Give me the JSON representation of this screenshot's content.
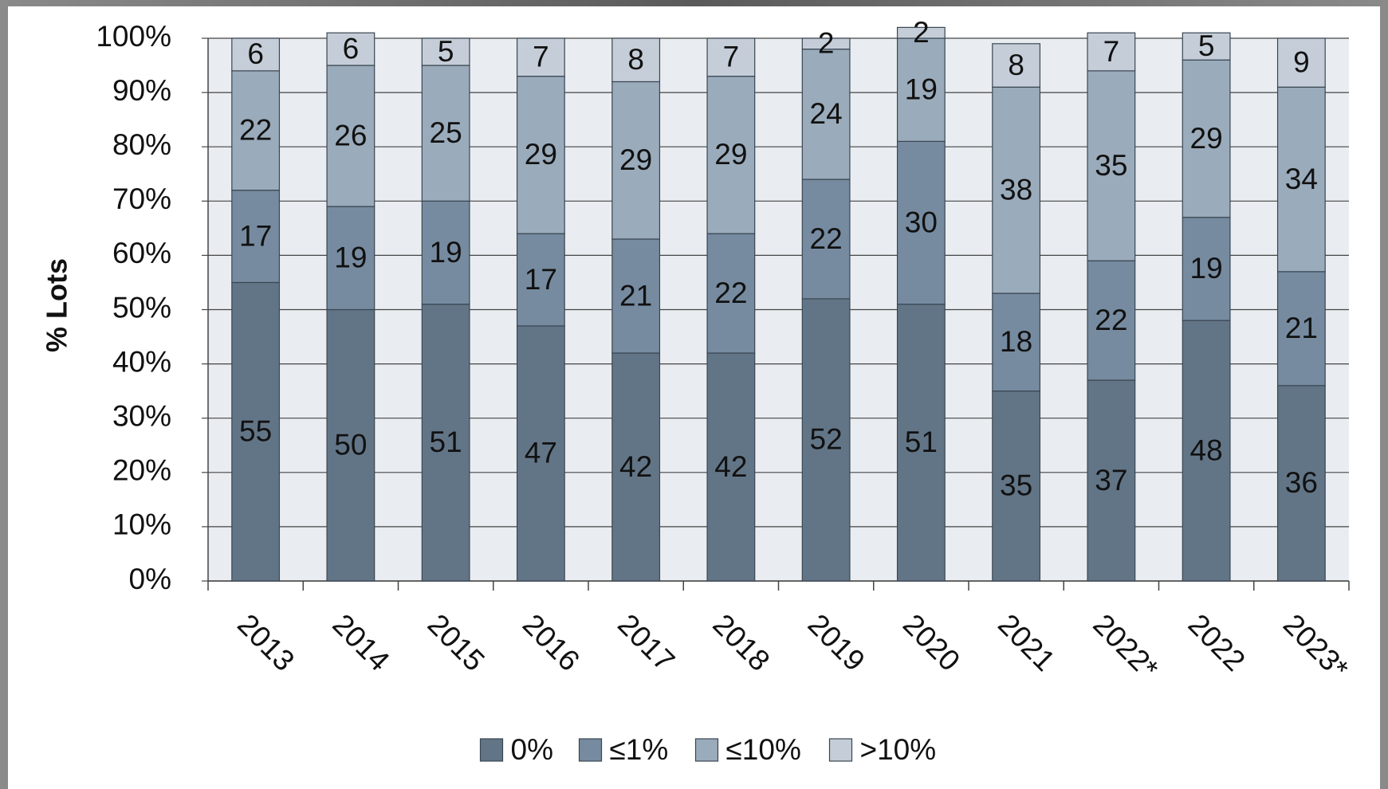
{
  "chart_data": {
    "type": "stacked_bar",
    "y_label": "% Lots",
    "categories": [
      "2013",
      "2014",
      "2015",
      "2016",
      "2017",
      "2018",
      "2019",
      "2020",
      "2021",
      "2022*",
      "2022",
      "2023*"
    ],
    "series": [
      {
        "name": "0%",
        "color": "#627587",
        "values": [
          55,
          50,
          51,
          47,
          42,
          42,
          52,
          51,
          35,
          37,
          48,
          36
        ]
      },
      {
        "name": "≤1%",
        "color": "#768ba0",
        "values": [
          17,
          19,
          19,
          17,
          21,
          22,
          22,
          30,
          18,
          22,
          19,
          21
        ]
      },
      {
        "name": "≤10%",
        "color": "#9aabbb",
        "values": [
          22,
          26,
          25,
          29,
          29,
          29,
          24,
          19,
          38,
          35,
          29,
          34
        ]
      },
      {
        "name": ">10%",
        "color": "#c5ced8",
        "values": [
          6,
          6,
          5,
          7,
          8,
          7,
          2,
          2,
          8,
          7,
          5,
          9
        ]
      }
    ],
    "ylim": [
      0,
      100
    ],
    "yticks": [
      {
        "value": 0,
        "label": "0%"
      },
      {
        "value": 10,
        "label": "10%"
      },
      {
        "value": 20,
        "label": "20%"
      },
      {
        "value": 30,
        "label": "30%"
      },
      {
        "value": 40,
        "label": "40%"
      },
      {
        "value": 50,
        "label": "50%"
      },
      {
        "value": 60,
        "label": "60%"
      },
      {
        "value": 70,
        "label": "70%"
      },
      {
        "value": 80,
        "label": "80%"
      },
      {
        "value": 90,
        "label": "90%"
      },
      {
        "value": 100,
        "label": "100%"
      }
    ],
    "grid": true,
    "legend": "bottom"
  }
}
